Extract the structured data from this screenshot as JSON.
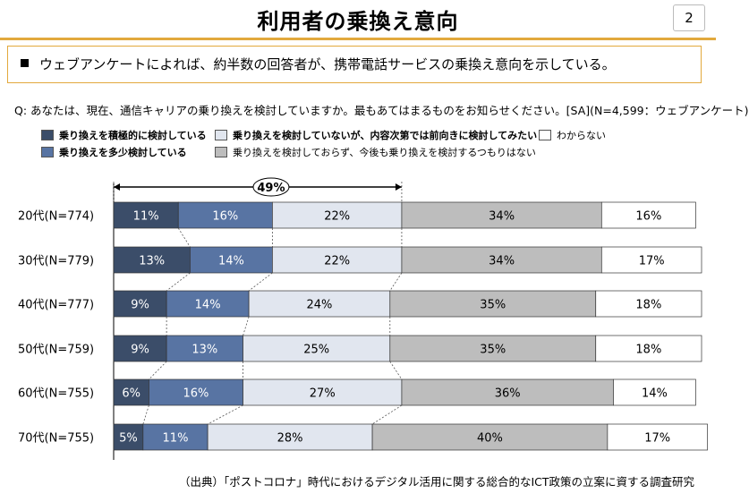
{
  "header": {
    "title": "利用者の乗換え意向",
    "page_number": "2"
  },
  "summary": "ウェブアンケートによれば、約半数の回答者が、携帯電話サービスの乗換え意向を示している。",
  "question": "Q: あなたは、現在、通信キャリアの乗り換えを検討していますか。最もあてはまるものをお知らせください。[SA](N=4,599：ウェブアンケート)",
  "source": "（出典）「ポストコロナ」時代におけるデジタル活用に関する総合的なICT政策の立案に資する調査研究",
  "colors": [
    "#3b4d69",
    "#5874a3",
    "#e1e6ef",
    "#bdbdbd",
    "#ffffff"
  ],
  "chart_data": {
    "type": "bar",
    "orientation": "horizontal",
    "stacked": true,
    "categories": [
      "20代(N=774)",
      "30代(N=779)",
      "40代(N=777)",
      "50代(N=759)",
      "60代(N=755)",
      "70代(N=755)"
    ],
    "series": [
      {
        "name": "乗り換えを積極的に検討している",
        "values": [
          11,
          13,
          9,
          9,
          6,
          5
        ]
      },
      {
        "name": "乗り換えを多少検討している",
        "values": [
          16,
          14,
          14,
          13,
          16,
          11
        ]
      },
      {
        "name": "乗り換えを検討していないが、内容次第では前向きに検討してみたい",
        "values": [
          22,
          22,
          24,
          25,
          27,
          28
        ]
      },
      {
        "name": "乗り換えを検討しておらず、今後も乗り換えを検討するつもりはない",
        "values": [
          34,
          34,
          35,
          35,
          36,
          40
        ]
      },
      {
        "name": "わからない",
        "values": [
          16,
          17,
          18,
          18,
          14,
          17
        ]
      }
    ],
    "value_suffix": "%",
    "annotation": "49%",
    "xlim": [
      0,
      100
    ],
    "legend_position": "top"
  }
}
